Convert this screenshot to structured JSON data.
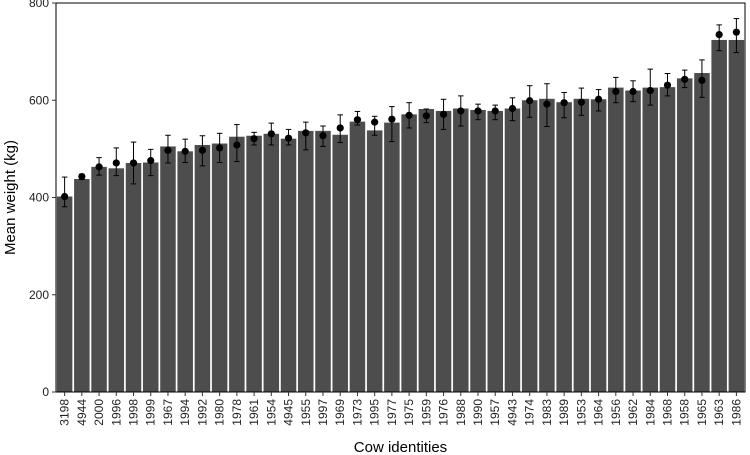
{
  "chart_data": {
    "type": "bar",
    "xlabel": "Cow identities",
    "ylabel": "Mean weight (kg)",
    "ylim": [
      0,
      800
    ],
    "yticks": [
      0,
      200,
      400,
      600,
      800
    ],
    "grid": false,
    "categories": [
      "3198",
      "4944",
      "2000",
      "1996",
      "1998",
      "1999",
      "1967",
      "1994",
      "1992",
      "1980",
      "1978",
      "1961",
      "1954",
      "4945",
      "1955",
      "1997",
      "1969",
      "1973",
      "1995",
      "1977",
      "1975",
      "1959",
      "1976",
      "1988",
      "1990",
      "1957",
      "4943",
      "1974",
      "1983",
      "1989",
      "1953",
      "1964",
      "1956",
      "1962",
      "1984",
      "1968",
      "1958",
      "1965",
      "1963",
      "1986"
    ],
    "series": [
      {
        "role": "bar",
        "values": [
          402,
          438,
          463,
          460,
          471,
          472,
          505,
          495,
          508,
          511,
          525,
          527,
          531,
          521,
          537,
          537,
          529,
          556,
          538,
          554,
          571,
          582,
          578,
          583,
          580,
          578,
          583,
          600,
          603,
          596,
          603,
          602,
          626,
          620,
          626,
          627,
          645,
          656,
          724,
          724
        ]
      },
      {
        "role": "point",
        "values": [
          402,
          443,
          463,
          471,
          471,
          476,
          497,
          495,
          497,
          502,
          508,
          521,
          531,
          522,
          533,
          527,
          543,
          560,
          555,
          561,
          569,
          568,
          571,
          578,
          578,
          578,
          583,
          599,
          592,
          595,
          596,
          602,
          618,
          618,
          620,
          631,
          643,
          641,
          735,
          740
        ]
      },
      {
        "role": "error_low",
        "values": [
          381,
          437,
          446,
          445,
          428,
          445,
          471,
          472,
          465,
          472,
          474,
          508,
          508,
          508,
          498,
          505,
          513,
          549,
          528,
          515,
          543,
          554,
          540,
          547,
          560,
          560,
          558,
          565,
          546,
          564,
          569,
          578,
          595,
          597,
          590,
          609,
          626,
          606,
          702,
          698
        ]
      },
      {
        "role": "error_high",
        "values": [
          442,
          448,
          482,
          502,
          514,
          499,
          528,
          520,
          527,
          532,
          550,
          534,
          553,
          540,
          555,
          547,
          570,
          577,
          567,
          587,
          595,
          582,
          602,
          609,
          592,
          590,
          605,
          630,
          634,
          616,
          625,
          622,
          647,
          640,
          664,
          655,
          662,
          683,
          755,
          768
        ]
      }
    ]
  }
}
